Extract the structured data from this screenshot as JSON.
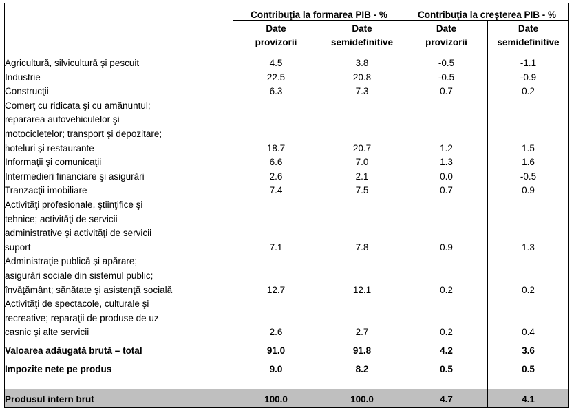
{
  "header": {
    "group1": "Contribuţia la formarea PIB - %",
    "group2": "Contribuţia la creşterea PIB - %",
    "sub": [
      {
        "l1": "Date",
        "l2": "provizorii"
      },
      {
        "l1": "Date",
        "l2": "semidefinitive"
      },
      {
        "l1": "Date",
        "l2": "provizorii"
      },
      {
        "l1": "Date",
        "l2": "semidefinitive"
      }
    ]
  },
  "rows": [
    {
      "lines": [
        "Agricultură, silvicultură şi pescuit"
      ],
      "v": [
        "4.5",
        "3.8",
        "-0.5",
        "-1.1"
      ]
    },
    {
      "lines": [
        "Industrie"
      ],
      "v": [
        "22.5",
        "20.8",
        "-0.5",
        "-0.9"
      ]
    },
    {
      "lines": [
        "Construcţii"
      ],
      "v": [
        "6.3",
        "7.3",
        "0.7",
        "0.2"
      ]
    },
    {
      "lines": [
        "Comerţ cu ridicata şi cu amănuntul;",
        "repararea autovehiculelor şi",
        "motocicletelor;  transport şi depozitare;",
        "hoteluri şi restaurante"
      ],
      "v": [
        "18.7",
        "20.7",
        "1.2",
        "1.5"
      ]
    },
    {
      "lines": [
        "Informaţii şi comunicaţii"
      ],
      "v": [
        "6.6",
        "7.0",
        "1.3",
        "1.6"
      ]
    },
    {
      "lines": [
        "Intermedieri financiare şi asigurări"
      ],
      "v": [
        "2.6",
        "2.1",
        "0.0",
        "-0.5"
      ]
    },
    {
      "lines": [
        "Tranzacţii imobiliare"
      ],
      "v": [
        "7.4",
        "7.5",
        "0.7",
        "0.9"
      ]
    },
    {
      "lines": [
        "Activităţi profesionale, ştiinţifice şi",
        "tehnice; activităţi de servicii",
        "administrative şi activităţi de servicii",
        "suport"
      ],
      "v": [
        "7.1",
        "7.8",
        "0.9",
        "1.3"
      ]
    },
    {
      "lines": [
        "Administraţie publică şi apărare;",
        "asigurări sociale din sistemul public;",
        "învăţământ; sănătate şi asistenţă socială"
      ],
      "v": [
        "12.7",
        "12.1",
        "0.2",
        "0.2"
      ]
    },
    {
      "lines": [
        "Activităţi de spectacole, culturale şi",
        "recreative; reparaţii de produse de uz",
        "casnic şi alte servicii"
      ],
      "v": [
        "2.6",
        "2.7",
        "0.2",
        "0.4"
      ]
    }
  ],
  "summary": [
    {
      "label": "Valoarea adăugată brută – total",
      "v": [
        "91.0",
        "91.8",
        "4.2",
        "3.6"
      ]
    },
    {
      "label": "Impozite nete pe produs",
      "v": [
        "9.0",
        "8.2",
        "0.5",
        "0.5"
      ]
    }
  ],
  "total": {
    "label": "Produsul intern brut",
    "v": [
      "100.0",
      "100.0",
      "4.7",
      "4.1"
    ]
  }
}
